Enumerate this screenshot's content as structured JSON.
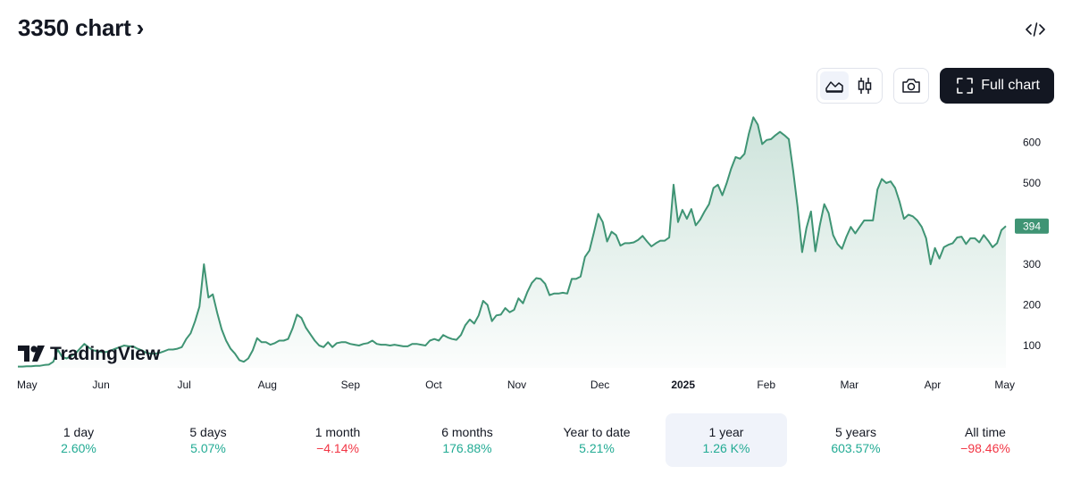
{
  "header": {
    "title": "3350 chart",
    "chevron": "›"
  },
  "toolbar": {
    "embed_icon": "code-icon",
    "line_icon": "line-chart-icon",
    "candle_icon": "candlestick-icon",
    "camera_icon": "camera-icon",
    "full_chart_label": "Full chart",
    "full_chart_icon": "fullscreen-icon"
  },
  "brand": {
    "name": "TradingView",
    "logo_icon": "tradingview-logo-icon"
  },
  "colors": {
    "line": "#3f9474",
    "fill_top": "#3f9474",
    "price_badge": "#3f9474",
    "positive": "#22ab94",
    "negative": "#f23645"
  },
  "chart_data": {
    "type": "area",
    "x_labels": [
      "May",
      "Jun",
      "Jul",
      "Aug",
      "Sep",
      "Oct",
      "Nov",
      "Dec",
      "2025",
      "Feb",
      "Mar",
      "Apr",
      "May"
    ],
    "y_ticks": [
      100,
      200,
      300,
      400,
      500,
      600
    ],
    "ylim": [
      45,
      665
    ],
    "last_price": "394",
    "series": [
      {
        "values": [
          48,
          48,
          49,
          49,
          50,
          50,
          52,
          53,
          60,
          90,
          72,
          68,
          74,
          80,
          92,
          104,
          95,
          88,
          86,
          84,
          84,
          88,
          92,
          96,
          100,
          98,
          98,
          92,
          88,
          82,
          80,
          80,
          82,
          86,
          90,
          90,
          92,
          96,
          116,
          130,
          160,
          196,
          300,
          218,
          226,
          180,
          140,
          112,
          92,
          80,
          64,
          60,
          68,
          88,
          118,
          108,
          108,
          102,
          106,
          112,
          112,
          116,
          142,
          176,
          168,
          144,
          128,
          112,
          100,
          96,
          108,
          96,
          106,
          108,
          108,
          104,
          102,
          100,
          104,
          106,
          112,
          104,
          102,
          102,
          100,
          102,
          100,
          98,
          98,
          104,
          104,
          102,
          100,
          112,
          116,
          112,
          126,
          120,
          116,
          114,
          126,
          150,
          164,
          154,
          174,
          210,
          200,
          160,
          174,
          176,
          192,
          182,
          188,
          216,
          204,
          232,
          254,
          266,
          264,
          252,
          224,
          228,
          228,
          230,
          228,
          264,
          264,
          270,
          318,
          334,
          378,
          424,
          404,
          356,
          380,
          372,
          346,
          352,
          352,
          354,
          360,
          370,
          356,
          344,
          352,
          358,
          358,
          366,
          496,
          404,
          434,
          412,
          436,
          396,
          410,
          430,
          448,
          488,
          496,
          470,
          500,
          536,
          564,
          560,
          572,
          622,
          662,
          644,
          596,
          606,
          608,
          618,
          626,
          618,
          608,
          530,
          440,
          330,
          390,
          430,
          332,
          396,
          448,
          426,
          372,
          350,
          338,
          368,
          392,
          376,
          392,
          408,
          408,
          408,
          484,
          510,
          500,
          504,
          488,
          454,
          412,
          422,
          418,
          408,
          392,
          364,
          300,
          340,
          314,
          342,
          348,
          352,
          366,
          368,
          350,
          364,
          364,
          354,
          372,
          358,
          342,
          352,
          384,
          394
        ]
      }
    ]
  },
  "periods": [
    {
      "label": "1 day",
      "value": "2.60%",
      "dir": "pos"
    },
    {
      "label": "5 days",
      "value": "5.07%",
      "dir": "pos"
    },
    {
      "label": "1 month",
      "value": "−4.14%",
      "dir": "neg"
    },
    {
      "label": "6 months",
      "value": "176.88%",
      "dir": "pos"
    },
    {
      "label": "Year to date",
      "value": "5.21%",
      "dir": "pos"
    },
    {
      "label": "1 year",
      "value": "1.26 K%",
      "dir": "pos",
      "active": true
    },
    {
      "label": "5 years",
      "value": "603.57%",
      "dir": "pos"
    },
    {
      "label": "All time",
      "value": "−98.46%",
      "dir": "neg"
    }
  ]
}
